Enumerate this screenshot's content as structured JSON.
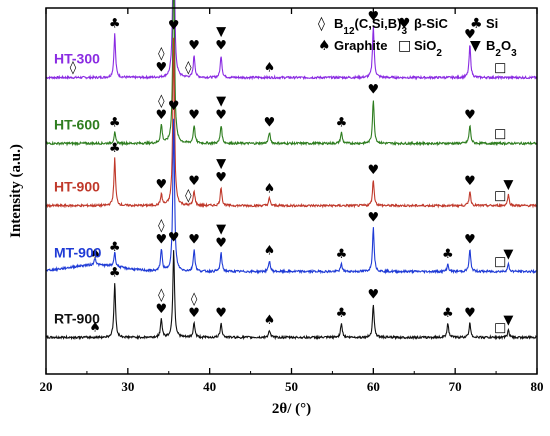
{
  "chart_data": {
    "type": "line",
    "xlabel": "2θ/ (°)",
    "ylabel": "Intensity (a.u.)",
    "xlim": [
      20,
      80
    ],
    "xticks": [
      20,
      30,
      40,
      50,
      60,
      70,
      80
    ],
    "x_tick_labels": [
      "20",
      "30",
      "40",
      "50",
      "60",
      "70",
      "80"
    ],
    "grid": false,
    "legend_position": "top-right",
    "legend": [
      {
        "symbol": "◊",
        "icon": "diamond-outline-icon",
        "label": "B12(C,Si,B)3",
        "label_main": "B",
        "label_sub": "12",
        "label_rest": "(C,Si,B)",
        "label_sub2": "3"
      },
      {
        "symbol": "♥",
        "icon": "heart-icon",
        "label": "β-SiC"
      },
      {
        "symbol": "♣",
        "icon": "club-icon",
        "label": "Si"
      },
      {
        "symbol": "♠",
        "icon": "spade-icon",
        "label": "Graphite"
      },
      {
        "symbol": "□",
        "icon": "square-outline-icon",
        "label": "SiO2",
        "label_main": "SiO",
        "label_sub": "2"
      },
      {
        "symbol": "▼",
        "icon": "triangle-down-icon",
        "label": "B2O3",
        "label_main": "B",
        "label_sub": "2",
        "label_rest": "O",
        "label_sub2": "3"
      }
    ],
    "series": [
      {
        "name": "HT-300",
        "color": "#8a2be2",
        "base": 0.81,
        "peaks": [
          [
            23.3,
            0.0
          ],
          [
            28.4,
            0.12
          ],
          [
            34.1,
            0.0
          ],
          [
            35.6,
            0.48
          ],
          [
            38.1,
            0.06
          ],
          [
            41.4,
            0.06
          ],
          [
            47.3,
            0.0
          ],
          [
            60.0,
            0.14
          ],
          [
            71.8,
            0.09
          ],
          [
            75.5,
            0.0
          ]
        ],
        "markers": [
          [
            23.3,
            "◊"
          ],
          [
            28.4,
            "♣"
          ],
          [
            34.1,
            "♥◊"
          ],
          [
            35.6,
            "♥"
          ],
          [
            37.4,
            "◊"
          ],
          [
            38.1,
            "♥"
          ],
          [
            41.4,
            "♥▼"
          ],
          [
            47.3,
            "♠"
          ],
          [
            60.0,
            "♥"
          ],
          [
            71.8,
            "♥"
          ],
          [
            75.5,
            "□"
          ]
        ]
      },
      {
        "name": "HT-600",
        "color": "#2e7d1f",
        "base": 0.63,
        "peaks": [
          [
            28.4,
            0.03
          ],
          [
            34.1,
            0.05
          ],
          [
            35.6,
            0.5
          ],
          [
            38.1,
            0.05
          ],
          [
            41.4,
            0.05
          ],
          [
            47.3,
            0.03
          ],
          [
            56.1,
            0.03
          ],
          [
            60.0,
            0.12
          ],
          [
            71.8,
            0.05
          ]
        ],
        "markers": [
          [
            28.4,
            "♣"
          ],
          [
            34.1,
            "♥◊"
          ],
          [
            35.6,
            "♥"
          ],
          [
            38.1,
            "♥"
          ],
          [
            41.4,
            "♥▼"
          ],
          [
            47.3,
            "♥"
          ],
          [
            56.1,
            "♣"
          ],
          [
            60.0,
            "♥"
          ],
          [
            71.8,
            "♥"
          ],
          [
            75.5,
            "□"
          ]
        ]
      },
      {
        "name": "HT-900",
        "color": "#c0392b",
        "base": 0.46,
        "peaks": [
          [
            28.4,
            0.13
          ],
          [
            34.1,
            0.03
          ],
          [
            35.6,
            0.46
          ],
          [
            38.1,
            0.04
          ],
          [
            41.4,
            0.05
          ],
          [
            47.3,
            0.02
          ],
          [
            60.0,
            0.07
          ],
          [
            71.8,
            0.04
          ],
          [
            76.5,
            0.03
          ]
        ],
        "markers": [
          [
            28.4,
            "♣"
          ],
          [
            34.1,
            "♥"
          ],
          [
            35.6,
            "♥"
          ],
          [
            37.4,
            "◊"
          ],
          [
            38.1,
            "♥"
          ],
          [
            41.4,
            "♥▼"
          ],
          [
            47.3,
            "♠"
          ],
          [
            60.0,
            "♥"
          ],
          [
            71.8,
            "♥"
          ],
          [
            75.5,
            "□"
          ],
          [
            76.5,
            "▼"
          ]
        ]
      },
      {
        "name": "MT-900",
        "color": "#1f3bd6",
        "base": 0.28,
        "peaks": [
          [
            26.0,
            0.02
          ],
          [
            28.4,
            0.04
          ],
          [
            34.1,
            0.06
          ],
          [
            35.6,
            0.42
          ],
          [
            38.1,
            0.06
          ],
          [
            41.4,
            0.05
          ],
          [
            47.3,
            0.03
          ],
          [
            56.1,
            0.02
          ],
          [
            60.0,
            0.12
          ],
          [
            69.1,
            0.02
          ],
          [
            71.8,
            0.06
          ],
          [
            76.5,
            0.02
          ]
        ],
        "markers": [
          [
            26.0,
            "♠"
          ],
          [
            28.4,
            "♣"
          ],
          [
            34.1,
            "♥◊"
          ],
          [
            35.6,
            "♥"
          ],
          [
            38.1,
            "♥"
          ],
          [
            41.4,
            "♥▼"
          ],
          [
            47.3,
            "♠"
          ],
          [
            56.1,
            "♣"
          ],
          [
            60.0,
            "♥"
          ],
          [
            69.1,
            "♣"
          ],
          [
            71.8,
            "♥"
          ],
          [
            75.5,
            "□"
          ],
          [
            76.5,
            "▼"
          ]
        ]
      },
      {
        "name": "RT-900",
        "color": "#111111",
        "base": 0.1,
        "peaks": [
          [
            28.4,
            0.15
          ],
          [
            34.1,
            0.05
          ],
          [
            35.6,
            0.24
          ],
          [
            38.1,
            0.04
          ],
          [
            41.4,
            0.04
          ],
          [
            47.3,
            0.02
          ],
          [
            56.1,
            0.04
          ],
          [
            60.0,
            0.09
          ],
          [
            69.1,
            0.04
          ],
          [
            71.8,
            0.04
          ],
          [
            76.5,
            0.02
          ]
        ],
        "markers": [
          [
            26.0,
            "♠"
          ],
          [
            28.4,
            "♣"
          ],
          [
            34.1,
            "♥◊"
          ],
          [
            35.6,
            "♥"
          ],
          [
            38.1,
            "♥◊"
          ],
          [
            41.4,
            "♥"
          ],
          [
            47.3,
            "♠"
          ],
          [
            56.1,
            "♣"
          ],
          [
            60.0,
            "♥"
          ],
          [
            69.1,
            "♣"
          ],
          [
            71.8,
            "♥"
          ],
          [
            75.5,
            "□"
          ],
          [
            76.5,
            "▼"
          ]
        ]
      }
    ]
  }
}
